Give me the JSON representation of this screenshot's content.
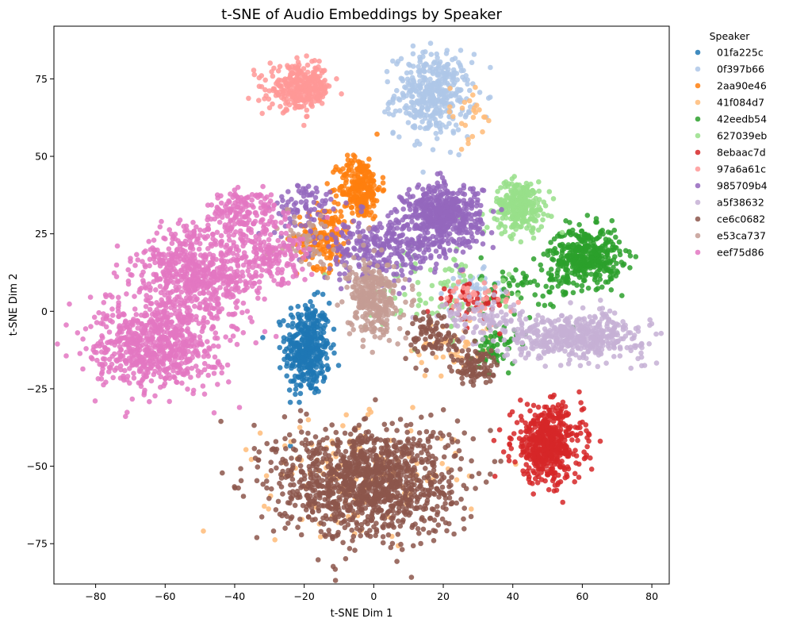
{
  "chart_data": {
    "type": "scatter",
    "title": "t-SNE of Audio Embeddings by Speaker",
    "xlabel": "t-SNE Dim 1",
    "ylabel": "t-SNE Dim 2",
    "xlim": [
      -92,
      85
    ],
    "ylim": [
      -88,
      92
    ],
    "x_ticks": [
      -80,
      -60,
      -40,
      -20,
      0,
      20,
      40,
      60,
      80
    ],
    "y_ticks": [
      -75,
      -50,
      -25,
      0,
      25,
      50,
      75
    ],
    "x_tick_labels": [
      "−80",
      "−60",
      "−40",
      "−20",
      "0",
      "20",
      "40",
      "60",
      "80"
    ],
    "y_tick_labels": [
      "−75",
      "−50",
      "−25",
      "0",
      "25",
      "50",
      "75"
    ],
    "grid": false,
    "legend": {
      "title": "Speaker",
      "placement": "outside-right"
    },
    "series": [
      {
        "name": "01fa225c",
        "color": "#1f77b4",
        "clusters": [
          {
            "cx": -19,
            "cy": -12,
            "sx": 3.2,
            "sy": 7.5,
            "n": 380
          }
        ]
      },
      {
        "name": "0f397b66",
        "color": "#aec7e8",
        "clusters": [
          {
            "cx": 17,
            "cy": 70,
            "sx": 5.5,
            "sy": 6.5,
            "n": 400
          },
          {
            "cx": 28,
            "cy": 7,
            "sx": 4,
            "sy": 3,
            "n": 40
          }
        ]
      },
      {
        "name": "2aa90e46",
        "color": "#ff7f0e",
        "clusters": [
          {
            "cx": -4,
            "cy": 40,
            "sx": 3,
            "sy": 5,
            "n": 260
          },
          {
            "cx": -14,
            "cy": 24,
            "sx": 4,
            "sy": 5,
            "n": 160
          }
        ]
      },
      {
        "name": "41f084d7",
        "color": "#ffbb78",
        "clusters": [
          {
            "cx": -4,
            "cy": -53,
            "sx": 14,
            "sy": 8.5,
            "n": 150
          },
          {
            "cx": 27,
            "cy": 64,
            "sx": 4,
            "sy": 5,
            "n": 25
          },
          {
            "cx": 23,
            "cy": -12,
            "sx": 6,
            "sy": 5,
            "n": 40
          }
        ]
      },
      {
        "name": "42eedb54",
        "color": "#2ca02c",
        "clusters": [
          {
            "cx": 61,
            "cy": 18,
            "sx": 5,
            "sy": 4.5,
            "n": 380
          },
          {
            "cx": 47,
            "cy": 8,
            "sx": 8,
            "sy": 5,
            "n": 80
          },
          {
            "cx": 35,
            "cy": -12,
            "sx": 3,
            "sy": 4,
            "n": 60
          }
        ]
      },
      {
        "name": "627039eb",
        "color": "#98df8a",
        "clusters": [
          {
            "cx": 42,
            "cy": 34,
            "sx": 3.5,
            "sy": 4,
            "n": 280
          },
          {
            "cx": 18,
            "cy": 8,
            "sx": 10,
            "sy": 8,
            "n": 90
          }
        ]
      },
      {
        "name": "8ebaac7d",
        "color": "#d62728",
        "clusters": [
          {
            "cx": 50,
            "cy": -43,
            "sx": 5,
            "sy": 6,
            "n": 520
          },
          {
            "cx": 28,
            "cy": 3,
            "sx": 5,
            "sy": 3,
            "n": 50
          }
        ]
      },
      {
        "name": "97a6a61c",
        "color": "#ff9896",
        "clusters": [
          {
            "cx": -21,
            "cy": 72,
            "sx": 4.5,
            "sy": 3.5,
            "n": 320
          },
          {
            "cx": 30,
            "cy": 4,
            "sx": 5,
            "sy": 3,
            "n": 40
          }
        ]
      },
      {
        "name": "985709b4",
        "color": "#9467bd",
        "clusters": [
          {
            "cx": 20,
            "cy": 31,
            "sx": 5.5,
            "sy": 5,
            "n": 520
          },
          {
            "cx": 2,
            "cy": 20,
            "sx": 9,
            "sy": 5,
            "n": 300
          },
          {
            "cx": -20,
            "cy": 33,
            "sx": 5,
            "sy": 4,
            "n": 80
          }
        ]
      },
      {
        "name": "a5f38632",
        "color": "#c5b0d5",
        "clusters": [
          {
            "cx": 58,
            "cy": -8,
            "sx": 10,
            "sy": 3.5,
            "n": 480
          },
          {
            "cx": 30,
            "cy": -2,
            "sx": 6,
            "sy": 3,
            "n": 80
          }
        ]
      },
      {
        "name": "ce6c0682",
        "color": "#8c564b",
        "clusters": [
          {
            "cx": -2,
            "cy": -55,
            "sx": 13,
            "sy": 9,
            "n": 1200
          },
          {
            "cx": 18,
            "cy": -8,
            "sx": 4,
            "sy": 4,
            "n": 90
          },
          {
            "cx": 29,
            "cy": -18,
            "sx": 3.5,
            "sy": 3,
            "n": 90
          }
        ]
      },
      {
        "name": "e53ca737",
        "color": "#c49c94",
        "clusters": [
          {
            "cx": 0,
            "cy": 4,
            "sx": 3.5,
            "sy": 6,
            "n": 320
          },
          {
            "cx": -20,
            "cy": 23,
            "sx": 4,
            "sy": 5,
            "n": 50
          }
        ]
      },
      {
        "name": "eef75d86",
        "color": "#e377c2",
        "clusters": [
          {
            "cx": -63,
            "cy": -11,
            "sx": 9,
            "sy": 7,
            "n": 700
          },
          {
            "cx": -50,
            "cy": 12,
            "sx": 9,
            "sy": 8,
            "n": 650
          },
          {
            "cx": -38,
            "cy": 32,
            "sx": 5,
            "sy": 4,
            "n": 160
          },
          {
            "cx": -30,
            "cy": 18,
            "sx": 6,
            "sy": 5,
            "n": 160
          }
        ]
      }
    ]
  }
}
